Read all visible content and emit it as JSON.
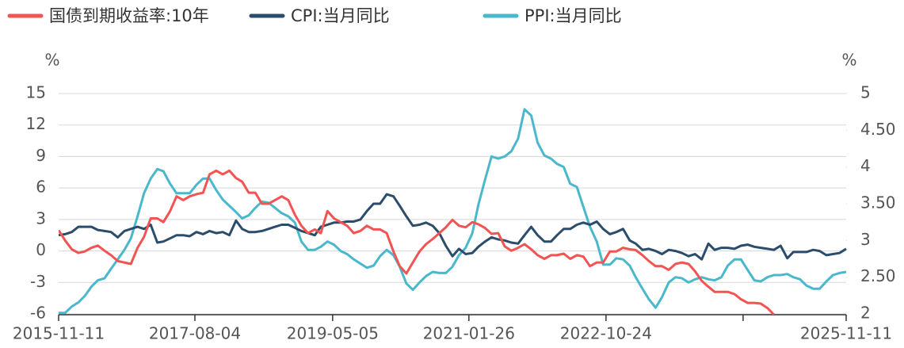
{
  "chart_data": {
    "type": "line",
    "x": [
      "2015-11-11",
      "2015-12-11",
      "2016-01-11",
      "2016-02-11",
      "2016-03-11",
      "2016-04-11",
      "2016-05-11",
      "2016-06-11",
      "2016-07-11",
      "2016-08-11",
      "2016-09-11",
      "2016-10-11",
      "2016-11-11",
      "2016-12-11",
      "2017-01-11",
      "2017-02-11",
      "2017-03-11",
      "2017-04-11",
      "2017-05-11",
      "2017-06-11",
      "2017-07-11",
      "2017-08-11",
      "2017-09-11",
      "2017-10-11",
      "2017-11-11",
      "2017-12-11",
      "2018-01-11",
      "2018-02-11",
      "2018-03-11",
      "2018-04-11",
      "2018-05-11",
      "2018-06-11",
      "2018-07-11",
      "2018-08-11",
      "2018-09-11",
      "2018-10-11",
      "2018-11-11",
      "2018-12-11",
      "2019-01-11",
      "2019-02-11",
      "2019-03-11",
      "2019-04-11",
      "2019-05-11",
      "2019-06-11",
      "2019-07-11",
      "2019-08-11",
      "2019-09-11",
      "2019-10-11",
      "2019-11-11",
      "2019-12-11",
      "2020-01-11",
      "2020-02-11",
      "2020-03-11",
      "2020-04-11",
      "2020-05-11",
      "2020-06-11",
      "2020-07-11",
      "2020-08-11",
      "2020-09-11",
      "2020-10-11",
      "2020-11-11",
      "2020-12-11",
      "2021-01-11",
      "2021-02-11",
      "2021-03-11",
      "2021-04-11",
      "2021-05-11",
      "2021-06-11",
      "2021-07-11",
      "2021-08-11",
      "2021-09-11",
      "2021-10-11",
      "2021-11-11",
      "2021-12-11",
      "2022-01-11",
      "2022-02-11",
      "2022-03-11",
      "2022-04-11",
      "2022-05-11",
      "2022-06-11",
      "2022-07-11",
      "2022-08-11",
      "2022-09-11",
      "2022-10-11",
      "2022-11-11",
      "2022-12-11",
      "2023-01-11",
      "2023-02-11",
      "2023-03-11",
      "2023-04-11",
      "2023-05-11",
      "2023-06-11",
      "2023-07-11",
      "2023-08-11",
      "2023-09-11",
      "2023-10-11",
      "2023-11-11",
      "2023-12-11",
      "2024-01-11",
      "2024-02-11",
      "2024-03-11",
      "2024-04-11",
      "2024-05-11",
      "2024-06-11",
      "2024-07-11",
      "2024-08-11",
      "2024-09-11",
      "2024-10-11",
      "2024-11-11",
      "2024-12-11",
      "2025-01-11",
      "2025-02-11",
      "2025-03-11",
      "2025-04-11",
      "2025-05-11",
      "2025-06-11",
      "2025-07-11",
      "2025-08-11",
      "2025-09-11",
      "2025-10-11",
      "2025-11-11"
    ],
    "series": [
      {
        "name": "国债到期收益率:10年",
        "color": "#f25353",
        "axis": "y2",
        "values": [
          3.14,
          3.0,
          2.88,
          2.83,
          2.85,
          2.9,
          2.93,
          2.86,
          2.8,
          2.72,
          2.7,
          2.68,
          2.9,
          3.05,
          3.3,
          3.3,
          3.25,
          3.4,
          3.6,
          3.55,
          3.6,
          3.63,
          3.65,
          3.9,
          3.95,
          3.9,
          3.95,
          3.85,
          3.8,
          3.65,
          3.65,
          3.5,
          3.5,
          3.55,
          3.6,
          3.55,
          3.35,
          3.2,
          3.1,
          3.15,
          3.1,
          3.4,
          3.3,
          3.25,
          3.2,
          3.1,
          3.13,
          3.2,
          3.15,
          3.15,
          3.1,
          2.85,
          2.65,
          2.55,
          2.7,
          2.85,
          2.95,
          3.02,
          3.1,
          3.18,
          3.28,
          3.2,
          3.18,
          3.25,
          3.22,
          3.17,
          3.09,
          3.1,
          2.92,
          2.86,
          2.9,
          2.95,
          2.88,
          2.8,
          2.75,
          2.8,
          2.8,
          2.82,
          2.75,
          2.8,
          2.78,
          2.65,
          2.7,
          2.7,
          2.85,
          2.85,
          2.9,
          2.88,
          2.87,
          2.8,
          2.72,
          2.65,
          2.65,
          2.6,
          2.68,
          2.7,
          2.68,
          2.58,
          2.45,
          2.37,
          2.3,
          2.3,
          2.3,
          2.27,
          2.2,
          2.15,
          2.15,
          2.14,
          2.08,
          1.99,
          null,
          null,
          null,
          null,
          null,
          null,
          null,
          null,
          null,
          null,
          null
        ]
      },
      {
        "name": "CPI:当月同比",
        "color": "#2b4c6a",
        "values": [
          1.5,
          1.6,
          1.8,
          2.3,
          2.3,
          2.3,
          2.0,
          1.9,
          1.8,
          1.3,
          1.9,
          2.1,
          2.3,
          2.1,
          2.5,
          0.8,
          0.9,
          1.2,
          1.5,
          1.5,
          1.4,
          1.8,
          1.6,
          1.9,
          1.7,
          1.8,
          1.5,
          2.9,
          2.1,
          1.8,
          1.8,
          1.9,
          2.1,
          2.3,
          2.5,
          2.5,
          2.2,
          1.9,
          1.7,
          1.5,
          2.3,
          2.5,
          2.7,
          2.7,
          2.8,
          2.8,
          3.0,
          3.8,
          4.5,
          4.5,
          5.4,
          5.2,
          4.3,
          3.3,
          2.4,
          2.5,
          2.7,
          2.4,
          1.7,
          0.5,
          -0.5,
          0.2,
          -0.3,
          -0.2,
          0.4,
          0.9,
          1.3,
          1.1,
          1.0,
          0.8,
          0.7,
          1.5,
          2.3,
          1.5,
          0.9,
          0.9,
          1.5,
          2.1,
          2.1,
          2.5,
          2.7,
          2.5,
          2.8,
          2.1,
          1.6,
          1.8,
          2.1,
          1.0,
          0.7,
          0.1,
          0.2,
          0,
          -0.3,
          0.1,
          0,
          -0.2,
          -0.5,
          -0.3,
          -0.8,
          0.7,
          0.1,
          0.3,
          0.3,
          0.2,
          0.5,
          0.6,
          0.4,
          0.3,
          0.2,
          0.1,
          0.5,
          -0.7,
          -0.1,
          -0.1,
          -0.1,
          0.1,
          0,
          -0.4,
          -0.3,
          -0.2,
          0.2
        ]
      },
      {
        "name": "PPI:当月同比",
        "color": "#4ab8cc",
        "values": [
          -5.9,
          -5.9,
          -5.3,
          -4.9,
          -4.3,
          -3.4,
          -2.8,
          -2.6,
          -1.7,
          -0.8,
          0.1,
          1.2,
          3.3,
          5.5,
          6.9,
          7.8,
          7.6,
          6.4,
          5.5,
          5.5,
          5.5,
          6.3,
          6.9,
          6.9,
          5.8,
          4.9,
          4.3,
          3.7,
          3.1,
          3.4,
          4.1,
          4.7,
          4.6,
          4.1,
          3.6,
          3.3,
          2.7,
          0.9,
          0.1,
          0.1,
          0.4,
          0.9,
          0.6,
          0,
          -0.3,
          -0.8,
          -1.2,
          -1.6,
          -1.4,
          -0.5,
          0.1,
          -0.4,
          -1.5,
          -3.1,
          -3.7,
          -3.0,
          -2.4,
          -2.0,
          -2.1,
          -2.1,
          -1.5,
          -0.4,
          0.3,
          1.7,
          4.4,
          6.8,
          9.0,
          8.8,
          9.0,
          9.5,
          10.7,
          13.5,
          12.9,
          10.3,
          9.1,
          8.8,
          8.3,
          8.0,
          6.4,
          6.1,
          4.2,
          2.3,
          0.9,
          -1.3,
          -1.3,
          -0.7,
          -0.8,
          -1.4,
          -2.5,
          -3.6,
          -4.6,
          -5.4,
          -4.4,
          -3.0,
          -2.5,
          -2.6,
          -3.0,
          -2.7,
          -2.5,
          -2.7,
          -2.8,
          -2.5,
          -1.4,
          -0.8,
          -0.8,
          -1.8,
          -2.8,
          -2.9,
          -2.5,
          -2.3,
          -2.3,
          -2.2,
          -2.5,
          -2.7,
          -3.3,
          -3.6,
          -3.6,
          -2.9,
          -2.3,
          -2.1,
          -2.0
        ]
      }
    ],
    "y_label": "%",
    "y2_label": "%",
    "xlim": [
      "2015-11-11",
      "2025-11-11"
    ],
    "xticks": [
      "2015-11-11",
      "2017-08-04",
      "2019-05-05",
      "2021-01-26",
      "2022-10-24",
      {
        "value": "2024-07-21",
        "label": null
      },
      "2025-11-11"
    ],
    "ylim": [
      -6,
      15
    ],
    "yticks": [
      -6,
      -3,
      0,
      3,
      6,
      9,
      12,
      15
    ],
    "y2lim": [
      2,
      5
    ],
    "y2ticks": [
      2,
      {
        "value": 2.5,
        "label": "2.50"
      },
      3,
      {
        "value": 3.5,
        "label": "3.50"
      },
      4,
      {
        "value": 4.5,
        "label": "4.50"
      },
      5
    ],
    "grid": true,
    "legend": "top-left"
  }
}
